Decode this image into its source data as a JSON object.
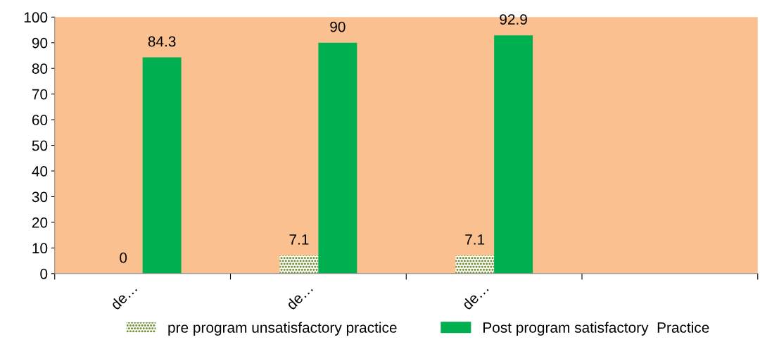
{
  "chart_data": {
    "type": "bar",
    "categories": [
      "de…",
      "de…",
      "de…",
      null
    ],
    "series": [
      {
        "name": "pre program unsatisfactory practice",
        "color": "#77933c",
        "values": [
          0,
          7.1,
          7.1,
          null
        ]
      },
      {
        "name": "Post program satisfactory  Practice",
        "color": "#00b050",
        "values": [
          84.3,
          90,
          92.9,
          null
        ]
      }
    ],
    "ylim": [
      0,
      100
    ],
    "yticks": [
      0,
      10,
      20,
      30,
      40,
      50,
      60,
      70,
      80,
      90,
      100
    ],
    "grid": false,
    "legend": "bottom",
    "data_labels": true
  }
}
